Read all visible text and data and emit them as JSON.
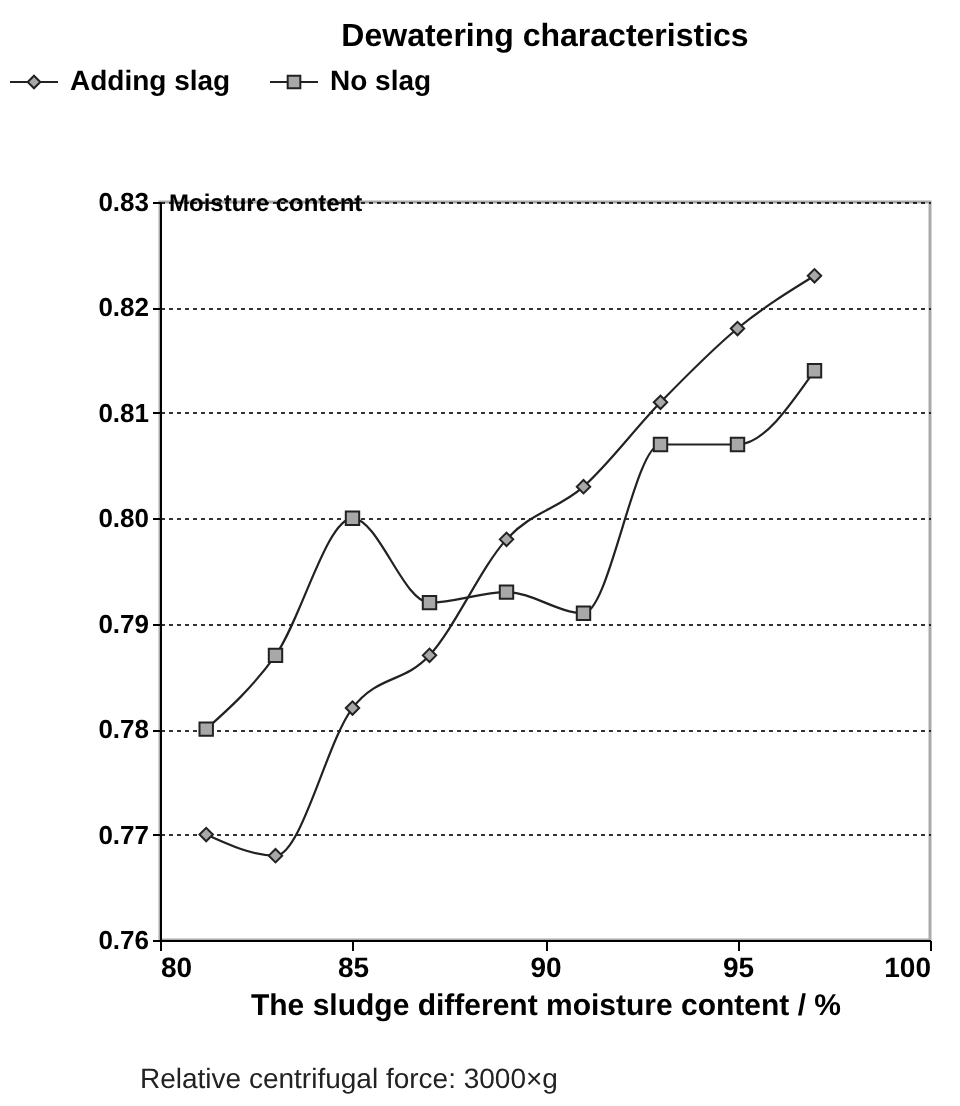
{
  "chart_data": {
    "type": "line",
    "title": "Dewatering characteristics",
    "xlabel": "The sludge different moisture content / %",
    "ylabel": "Moisture content",
    "x": [
      81.2,
      83,
      85,
      87,
      89,
      91,
      93,
      95,
      97
    ],
    "series": [
      {
        "name": "Adding slag",
        "color": "#222222",
        "marker": "diamond",
        "values": [
          0.77,
          0.768,
          0.782,
          0.787,
          0.798,
          0.803,
          0.811,
          0.818,
          0.823
        ]
      },
      {
        "name": "No slag",
        "color": "#222222",
        "marker": "square",
        "values": [
          0.78,
          0.787,
          0.8,
          0.792,
          0.793,
          0.791,
          0.807,
          0.807,
          0.814
        ]
      }
    ],
    "xlim": [
      80,
      100
    ],
    "xticks": [
      80,
      85,
      90,
      95,
      100
    ],
    "ylim": [
      0.76,
      0.83
    ],
    "yticks": [
      {
        "value": 0.76,
        "label": "0.76"
      },
      {
        "value": 0.77,
        "label": "0.77"
      },
      {
        "value": 0.78,
        "label": "0.78"
      },
      {
        "value": 0.79,
        "label": "0.79"
      },
      {
        "value": 0.8,
        "label": "0.80"
      },
      {
        "value": 0.81,
        "label": "0.81"
      },
      {
        "value": 0.82,
        "label": "0.82"
      },
      {
        "value": 0.83,
        "label": "0.83"
      }
    ],
    "grid": "y",
    "legend": "top left",
    "line_style": "solid",
    "annotations": [
      "Relative centrifugal force: 3000×g"
    ]
  }
}
